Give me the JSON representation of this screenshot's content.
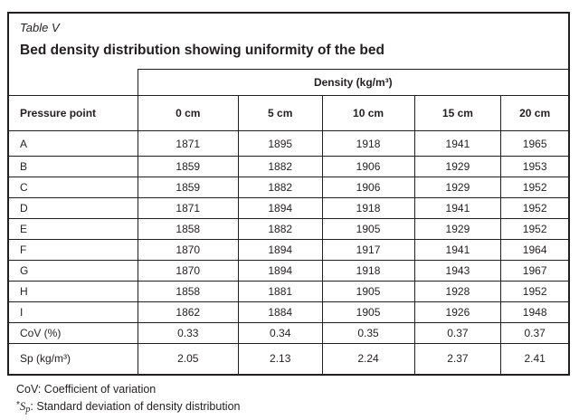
{
  "document": {
    "table_label": "Table V",
    "title": "Bed density distribution showing uniformity of the bed"
  },
  "table": {
    "group_header": "Density (kg/m³)",
    "columns": [
      "Pressure point",
      "0 cm",
      "5 cm",
      "10 cm",
      "15 cm",
      "20 cm"
    ],
    "rows": [
      {
        "label": "A",
        "values": [
          "1871",
          "1895",
          "1918",
          "1941",
          "1965"
        ]
      },
      {
        "label": "B",
        "values": [
          "1859",
          "1882",
          "1906",
          "1929",
          "1953"
        ]
      },
      {
        "label": "C",
        "values": [
          "1859",
          "1882",
          "1906",
          "1929",
          "1952"
        ]
      },
      {
        "label": "D",
        "values": [
          "1871",
          "1894",
          "1918",
          "1941",
          "1952"
        ]
      },
      {
        "label": "E",
        "values": [
          "1858",
          "1882",
          "1905",
          "1929",
          "1952"
        ]
      },
      {
        "label": "F",
        "values": [
          "1870",
          "1894",
          "1917",
          "1941",
          "1964"
        ]
      },
      {
        "label": "G",
        "values": [
          "1870",
          "1894",
          "1918",
          "1943",
          "1967"
        ]
      },
      {
        "label": "H",
        "values": [
          "1858",
          "1881",
          "1905",
          "1928",
          "1952"
        ]
      },
      {
        "label": "I",
        "values": [
          "1862",
          "1884",
          "1905",
          "1926",
          "1948"
        ]
      },
      {
        "label": "CoV (%)",
        "values": [
          "0.33",
          "0.34",
          "0.35",
          "0.37",
          "0.37"
        ]
      },
      {
        "label": "Sp (kg/m³)",
        "values": [
          "2.05",
          "2.13",
          "2.24",
          "2.37",
          "2.41"
        ]
      }
    ]
  },
  "footnotes": {
    "line1": "CoV: Coefficient of variation",
    "line2_star": "*",
    "line2_symbol": "S",
    "line2_subscript": "p",
    "line2_rest": ": Standard deviation of density distribution"
  },
  "colors": {
    "text": "#231f20",
    "border": "#231f20",
    "background": "#ffffff"
  }
}
